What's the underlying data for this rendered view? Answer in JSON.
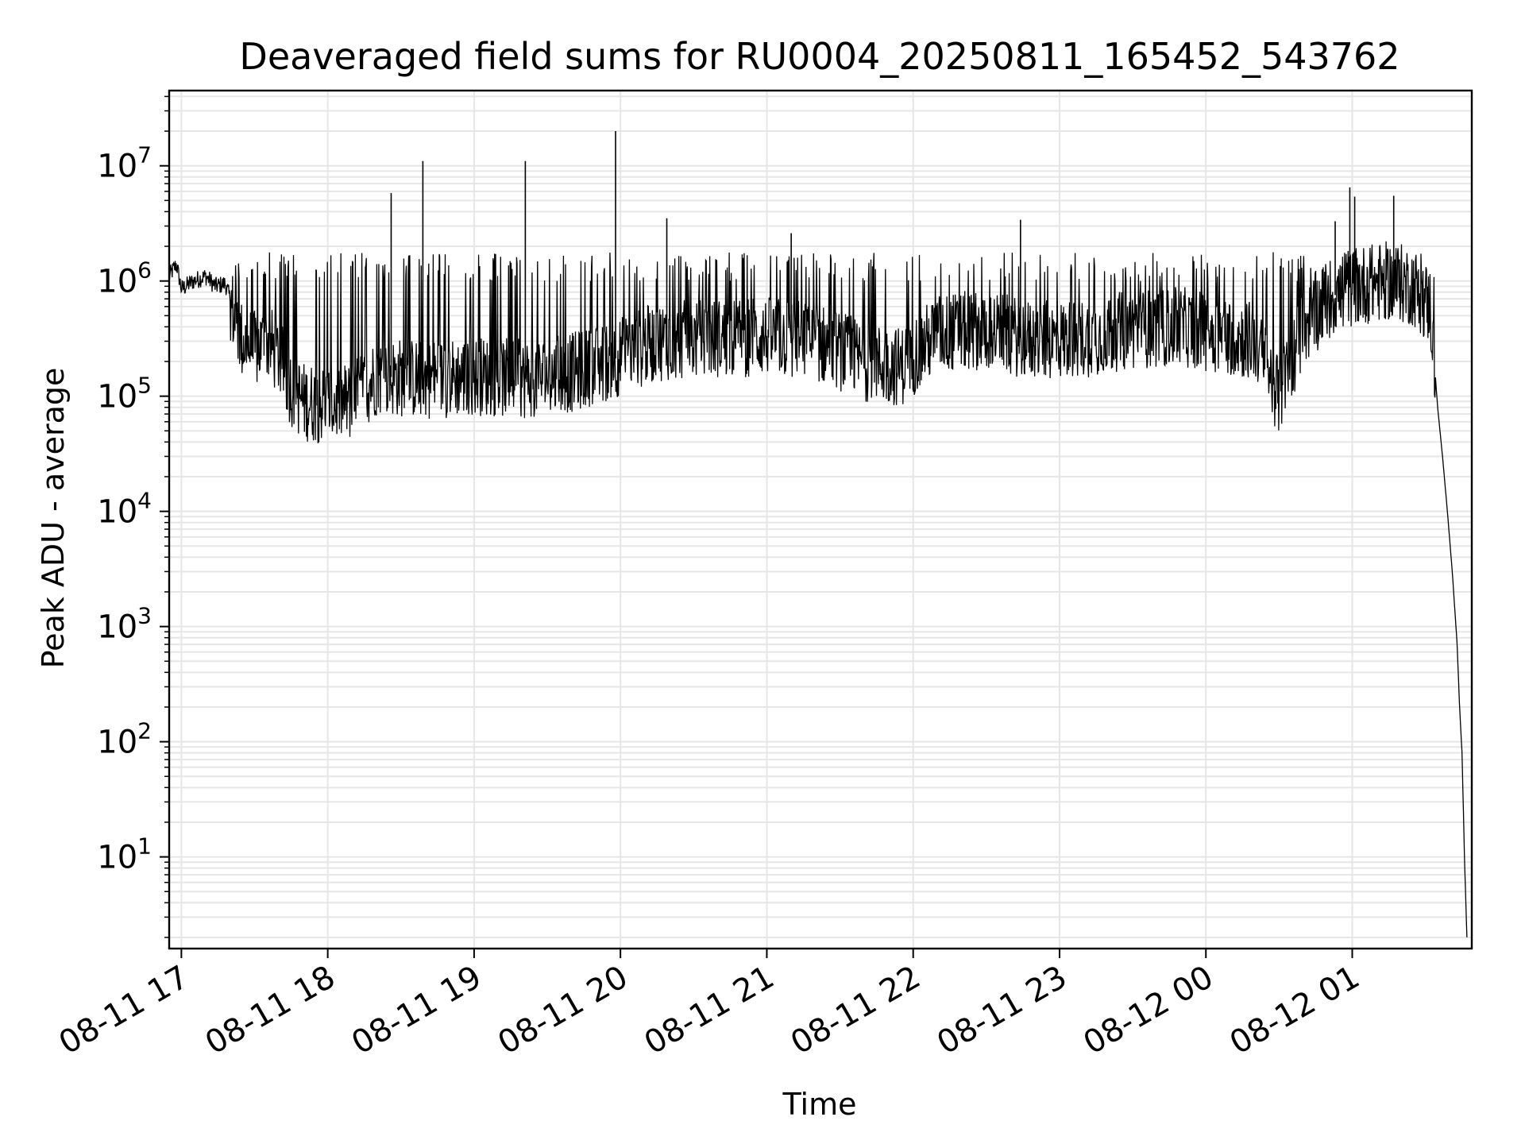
{
  "chart_data": {
    "type": "line",
    "title": "Deaveraged field sums for RU0004_20250811_165452_543762",
    "xlabel": "Time",
    "ylabel": "Peak ADU - average",
    "yscale": "log",
    "xlim": [
      "2025-08-11 16:55",
      "2025-08-12 01:49"
    ],
    "ylim": [
      1.6,
      45000000
    ],
    "x_ticks": [
      "08-11 17",
      "08-11 18",
      "08-11 19",
      "08-11 20",
      "08-11 21",
      "08-11 22",
      "08-11 23",
      "08-12 00",
      "08-12 01"
    ],
    "y_ticks": [
      {
        "base": "10",
        "exp": "1",
        "value": 10
      },
      {
        "base": "10",
        "exp": "2",
        "value": 100
      },
      {
        "base": "10",
        "exp": "3",
        "value": 1000
      },
      {
        "base": "10",
        "exp": "4",
        "value": 10000
      },
      {
        "base": "10",
        "exp": "5",
        "value": 100000
      },
      {
        "base": "10",
        "exp": "6",
        "value": 1000000
      },
      {
        "base": "10",
        "exp": "7",
        "value": 10000000
      }
    ],
    "grid": true,
    "line_color": "#000000",
    "grid_color": "#e6e6e6",
    "series": [
      {
        "points": [
          [
            "2025-08-11 16:55",
            1100000
          ],
          [
            "2025-08-11 16:58",
            1400000
          ],
          [
            "2025-08-11 17:00",
            850000
          ],
          [
            "2025-08-11 17:05",
            1000000
          ],
          [
            "2025-08-11 17:10",
            1100000
          ],
          [
            "2025-08-11 17:14",
            900000
          ],
          [
            "2025-08-11 17:18",
            950000
          ],
          [
            "2025-08-11 17:20",
            700000
          ],
          [
            "2025-08-11 17:22",
            450000
          ],
          [
            "2025-08-11 17:25",
            300000
          ],
          [
            "2025-08-11 17:30",
            250000
          ],
          [
            "2025-08-11 17:35",
            300000
          ],
          [
            "2025-08-11 17:40",
            220000
          ],
          [
            "2025-08-11 17:45",
            120000
          ],
          [
            "2025-08-11 17:50",
            90000
          ],
          [
            "2025-08-11 18:00",
            85000
          ],
          [
            "2025-08-11 18:10",
            90000
          ],
          [
            "2025-08-11 18:20",
            150000
          ],
          [
            "2025-08-11 18:40",
            140000
          ],
          [
            "2025-08-11 19:00",
            150000
          ],
          [
            "2025-08-11 19:20",
            140000
          ],
          [
            "2025-08-11 19:40",
            160000
          ],
          [
            "2025-08-11 19:55",
            200000
          ],
          [
            "2025-08-11 20:15",
            300000
          ],
          [
            "2025-08-11 20:40",
            320000
          ],
          [
            "2025-08-11 21:00",
            330000
          ],
          [
            "2025-08-11 21:20",
            300000
          ],
          [
            "2025-08-11 21:40",
            200000
          ],
          [
            "2025-08-11 21:55",
            180000
          ],
          [
            "2025-08-11 22:10",
            350000
          ],
          [
            "2025-08-11 22:30",
            380000
          ],
          [
            "2025-08-11 22:50",
            300000
          ],
          [
            "2025-08-11 23:10",
            320000
          ],
          [
            "2025-08-11 23:30",
            380000
          ],
          [
            "2025-08-11 23:50",
            400000
          ],
          [
            "2025-08-12 00:05",
            350000
          ],
          [
            "2025-08-12 00:20",
            300000
          ],
          [
            "2025-08-12 00:30",
            100000
          ],
          [
            "2025-08-12 00:40",
            400000
          ],
          [
            "2025-08-12 00:50",
            700000
          ],
          [
            "2025-08-12 01:00",
            900000
          ],
          [
            "2025-08-12 01:15",
            1000000
          ],
          [
            "2025-08-12 01:25",
            900000
          ],
          [
            "2025-08-12 01:32",
            600000
          ],
          [
            "2025-08-12 01:35",
            80000
          ],
          [
            "2025-08-12 01:37",
            30000
          ],
          [
            "2025-08-12 01:39",
            10000
          ],
          [
            "2025-08-12 01:41",
            3000
          ],
          [
            "2025-08-12 01:43",
            700
          ],
          [
            "2025-08-12 01:44",
            200
          ],
          [
            "2025-08-12 01:45",
            80
          ],
          [
            "2025-08-12 01:46",
            10
          ],
          [
            "2025-08-12 01:47",
            2
          ]
        ],
        "spikes": [
          [
            "2025-08-11 18:26",
            5800000
          ],
          [
            "2025-08-11 18:39",
            11000000
          ],
          [
            "2025-08-11 19:21",
            11000000
          ],
          [
            "2025-08-11 19:58",
            20000000
          ],
          [
            "2025-08-11 20:19",
            3500000
          ],
          [
            "2025-08-11 21:10",
            2600000
          ],
          [
            "2025-08-11 22:44",
            3400000
          ],
          [
            "2025-08-12 00:53",
            3300000
          ],
          [
            "2025-08-12 00:59",
            6500000
          ],
          [
            "2025-08-12 01:01",
            5400000
          ],
          [
            "2025-08-12 01:17",
            5500000
          ]
        ]
      }
    ]
  }
}
